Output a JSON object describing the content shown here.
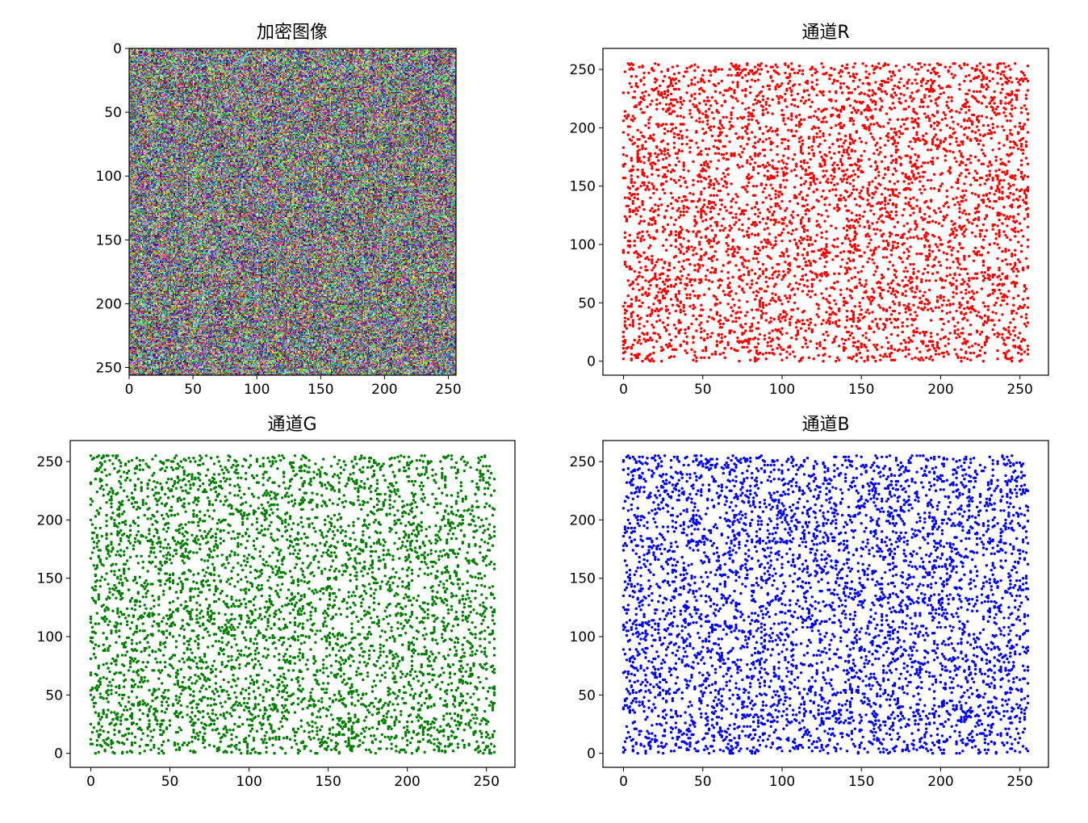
{
  "figure": {
    "background": "#ffffff"
  },
  "chart_data": [
    {
      "id": "encrypted-image",
      "type": "heatmap",
      "title": "加密图像",
      "description_values": "random RGB noise image, 256x256 pixels",
      "xlim": [
        0,
        256
      ],
      "ylim": [
        256,
        0
      ],
      "xticks": [
        0,
        50,
        100,
        150,
        200,
        250
      ],
      "yticks": [
        0,
        50,
        100,
        150,
        200,
        250
      ],
      "xtick_labels": [
        "0",
        "50",
        "100",
        "150",
        "200",
        "250"
      ],
      "ytick_labels": [
        "0",
        "50",
        "100",
        "150",
        "200",
        "250"
      ],
      "image_size": [
        256,
        256
      ],
      "grid": false
    },
    {
      "id": "channel-r",
      "type": "scatter",
      "title": "通道R",
      "color": "#ff0000",
      "xlim": [
        -13,
        268
      ],
      "ylim": [
        -12,
        268
      ],
      "xticks": [
        0,
        50,
        100,
        150,
        200,
        250
      ],
      "yticks": [
        0,
        50,
        100,
        150,
        200,
        250
      ],
      "xtick_labels": [
        "0",
        "50",
        "100",
        "150",
        "200",
        "250"
      ],
      "ytick_labels": [
        "0",
        "50",
        "100",
        "150",
        "200",
        "250"
      ],
      "x_range": [
        0,
        255
      ],
      "y_range": [
        0,
        255
      ],
      "point_count": 5000,
      "seed": 11,
      "grid": false
    },
    {
      "id": "channel-g",
      "type": "scatter",
      "title": "通道G",
      "color": "#008000",
      "xlim": [
        -13,
        268
      ],
      "ylim": [
        -12,
        268
      ],
      "xticks": [
        0,
        50,
        100,
        150,
        200,
        250
      ],
      "yticks": [
        0,
        50,
        100,
        150,
        200,
        250
      ],
      "xtick_labels": [
        "0",
        "50",
        "100",
        "150",
        "200",
        "250"
      ],
      "ytick_labels": [
        "0",
        "50",
        "100",
        "150",
        "200",
        "250"
      ],
      "x_range": [
        0,
        255
      ],
      "y_range": [
        0,
        255
      ],
      "point_count": 5000,
      "seed": 23,
      "grid": false
    },
    {
      "id": "channel-b",
      "type": "scatter",
      "title": "通道B",
      "color": "#0000ff",
      "xlim": [
        -13,
        268
      ],
      "ylim": [
        -12,
        268
      ],
      "xticks": [
        0,
        50,
        100,
        150,
        200,
        250
      ],
      "yticks": [
        0,
        50,
        100,
        150,
        200,
        250
      ],
      "xtick_labels": [
        "0",
        "50",
        "100",
        "150",
        "200",
        "250"
      ],
      "ytick_labels": [
        "0",
        "50",
        "100",
        "150",
        "200",
        "250"
      ],
      "x_range": [
        0,
        255
      ],
      "y_range": [
        0,
        255
      ],
      "point_count": 5000,
      "seed": 37,
      "grid": false
    }
  ]
}
